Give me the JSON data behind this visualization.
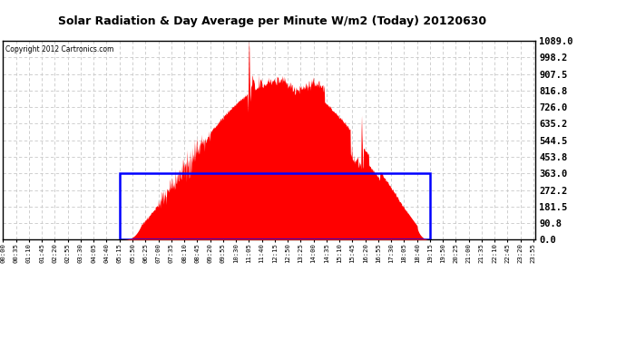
{
  "title": "Solar Radiation & Day Average per Minute W/m2 (Today) 20120630",
  "copyright": "Copyright 2012 Cartronics.com",
  "bg_color": "#ffffff",
  "plot_bg_color": "#ffffff",
  "fill_color": "#ff0000",
  "blue_rect_color": "#0000ff",
  "grid_color": "#c8c8c8",
  "grid_style": "--",
  "ylim": [
    0.0,
    1089.0
  ],
  "ytick_labels": [
    "0.0",
    "90.8",
    "181.5",
    "272.2",
    "363.0",
    "453.8",
    "544.5",
    "635.2",
    "726.0",
    "816.8",
    "907.5",
    "998.2",
    "1089.0"
  ],
  "ytick_values": [
    0.0,
    90.8,
    181.5,
    272.2,
    363.0,
    453.8,
    544.5,
    635.2,
    726.0,
    816.8,
    907.5,
    998.2,
    1089.0
  ],
  "day_avg": 363.0,
  "sunrise_min": 315,
  "sunset_min": 1155,
  "num_minutes": 1440,
  "noon_min": 750
}
